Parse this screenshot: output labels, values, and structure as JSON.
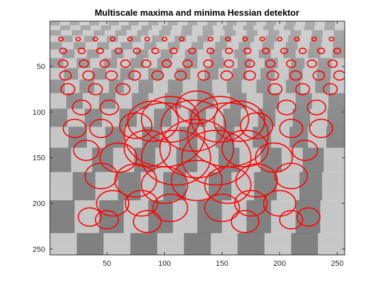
{
  "chart_data": {
    "type": "scatter",
    "title": "Multiscale maxima and minima Hessian detektor",
    "xlabel": "",
    "ylabel": "",
    "xlim": [
      0.5,
      256.5
    ],
    "ylim": [
      0.5,
      256.5
    ],
    "y_axis_reversed": true,
    "x_ticks": [
      50,
      100,
      150,
      200,
      250
    ],
    "y_ticks": [
      50,
      100,
      150,
      200,
      250
    ],
    "x_tick_labels": [
      "50",
      "100",
      "150",
      "200",
      "250"
    ],
    "y_tick_labels": [
      "50",
      "100",
      "150",
      "200",
      "250"
    ],
    "grid": false,
    "background": "grayscale checkerboard-like pattern in perspective, finer at the top",
    "marker": "circle outline",
    "marker_color": "#ff0000",
    "series": [
      {
        "points": [
          {
            "x": 10,
            "y": 20,
            "r": 2
          },
          {
            "x": 25,
            "y": 20,
            "r": 2
          },
          {
            "x": 40,
            "y": 20,
            "r": 2
          },
          {
            "x": 55,
            "y": 20,
            "r": 2
          },
          {
            "x": 70,
            "y": 20,
            "r": 2
          },
          {
            "x": 85,
            "y": 20,
            "r": 2
          },
          {
            "x": 100,
            "y": 20,
            "r": 2
          },
          {
            "x": 115,
            "y": 20,
            "r": 2
          },
          {
            "x": 140,
            "y": 20,
            "r": 2
          },
          {
            "x": 155,
            "y": 20,
            "r": 2
          },
          {
            "x": 170,
            "y": 20,
            "r": 2
          },
          {
            "x": 185,
            "y": 20,
            "r": 2
          },
          {
            "x": 200,
            "y": 20,
            "r": 2
          },
          {
            "x": 215,
            "y": 20,
            "r": 2
          },
          {
            "x": 230,
            "y": 20,
            "r": 2
          },
          {
            "x": 245,
            "y": 20,
            "r": 2
          },
          {
            "x": 12,
            "y": 33,
            "r": 3
          },
          {
            "x": 28,
            "y": 33,
            "r": 3
          },
          {
            "x": 44,
            "y": 33,
            "r": 3
          },
          {
            "x": 60,
            "y": 33,
            "r": 3
          },
          {
            "x": 76,
            "y": 33,
            "r": 3
          },
          {
            "x": 92,
            "y": 33,
            "r": 3
          },
          {
            "x": 108,
            "y": 33,
            "r": 3
          },
          {
            "x": 124,
            "y": 33,
            "r": 3
          },
          {
            "x": 140,
            "y": 33,
            "r": 3
          },
          {
            "x": 156,
            "y": 33,
            "r": 3
          },
          {
            "x": 172,
            "y": 33,
            "r": 3
          },
          {
            "x": 188,
            "y": 33,
            "r": 3
          },
          {
            "x": 204,
            "y": 33,
            "r": 3
          },
          {
            "x": 220,
            "y": 33,
            "r": 3
          },
          {
            "x": 236,
            "y": 33,
            "r": 3
          },
          {
            "x": 250,
            "y": 33,
            "r": 3
          },
          {
            "x": 12,
            "y": 47,
            "r": 4
          },
          {
            "x": 30,
            "y": 47,
            "r": 4
          },
          {
            "x": 48,
            "y": 47,
            "r": 4
          },
          {
            "x": 66,
            "y": 47,
            "r": 4
          },
          {
            "x": 84,
            "y": 47,
            "r": 4
          },
          {
            "x": 102,
            "y": 47,
            "r": 4
          },
          {
            "x": 120,
            "y": 47,
            "r": 4
          },
          {
            "x": 138,
            "y": 47,
            "r": 4
          },
          {
            "x": 156,
            "y": 47,
            "r": 4
          },
          {
            "x": 174,
            "y": 47,
            "r": 4
          },
          {
            "x": 192,
            "y": 47,
            "r": 4
          },
          {
            "x": 210,
            "y": 47,
            "r": 4
          },
          {
            "x": 228,
            "y": 47,
            "r": 4
          },
          {
            "x": 246,
            "y": 47,
            "r": 4
          },
          {
            "x": 14,
            "y": 60,
            "r": 5
          },
          {
            "x": 34,
            "y": 60,
            "r": 5
          },
          {
            "x": 54,
            "y": 60,
            "r": 5
          },
          {
            "x": 74,
            "y": 60,
            "r": 5
          },
          {
            "x": 94,
            "y": 60,
            "r": 5
          },
          {
            "x": 114,
            "y": 60,
            "r": 5
          },
          {
            "x": 134,
            "y": 60,
            "r": 5
          },
          {
            "x": 154,
            "y": 60,
            "r": 5
          },
          {
            "x": 174,
            "y": 60,
            "r": 5
          },
          {
            "x": 194,
            "y": 60,
            "r": 5
          },
          {
            "x": 214,
            "y": 60,
            "r": 5
          },
          {
            "x": 234,
            "y": 60,
            "r": 5
          },
          {
            "x": 252,
            "y": 60,
            "r": 5
          },
          {
            "x": 16,
            "y": 75,
            "r": 6
          },
          {
            "x": 40,
            "y": 75,
            "r": 6
          },
          {
            "x": 64,
            "y": 75,
            "r": 6
          },
          {
            "x": 196,
            "y": 75,
            "r": 6
          },
          {
            "x": 220,
            "y": 75,
            "r": 6
          },
          {
            "x": 244,
            "y": 75,
            "r": 6
          },
          {
            "x": 28,
            "y": 95,
            "r": 8
          },
          {
            "x": 52,
            "y": 95,
            "r": 8
          },
          {
            "x": 206,
            "y": 95,
            "r": 8
          },
          {
            "x": 232,
            "y": 95,
            "r": 8
          },
          {
            "x": 22,
            "y": 118,
            "r": 10
          },
          {
            "x": 45,
            "y": 118,
            "r": 10
          },
          {
            "x": 210,
            "y": 118,
            "r": 10
          },
          {
            "x": 236,
            "y": 118,
            "r": 10
          },
          {
            "x": 32,
            "y": 142,
            "r": 11
          },
          {
            "x": 222,
            "y": 142,
            "r": 11
          },
          {
            "x": 90,
            "y": 110,
            "r": 22
          },
          {
            "x": 105,
            "y": 108,
            "r": 25
          },
          {
            "x": 125,
            "y": 115,
            "r": 28
          },
          {
            "x": 148,
            "y": 108,
            "r": 25
          },
          {
            "x": 165,
            "y": 110,
            "r": 22
          },
          {
            "x": 128,
            "y": 140,
            "r": 32
          },
          {
            "x": 100,
            "y": 125,
            "r": 35
          },
          {
            "x": 155,
            "y": 125,
            "r": 35
          },
          {
            "x": 110,
            "y": 150,
            "r": 30
          },
          {
            "x": 145,
            "y": 150,
            "r": 30
          },
          {
            "x": 85,
            "y": 140,
            "r": 20
          },
          {
            "x": 170,
            "y": 140,
            "r": 20
          },
          {
            "x": 128,
            "y": 95,
            "r": 18
          },
          {
            "x": 75,
            "y": 115,
            "r": 14
          },
          {
            "x": 180,
            "y": 115,
            "r": 14
          },
          {
            "x": 60,
            "y": 150,
            "r": 16
          },
          {
            "x": 195,
            "y": 150,
            "r": 16
          },
          {
            "x": 45,
            "y": 170,
            "r": 14
          },
          {
            "x": 210,
            "y": 170,
            "r": 14
          },
          {
            "x": 75,
            "y": 175,
            "r": 18
          },
          {
            "x": 180,
            "y": 175,
            "r": 18
          },
          {
            "x": 100,
            "y": 180,
            "r": 20
          },
          {
            "x": 155,
            "y": 180,
            "r": 20
          },
          {
            "x": 128,
            "y": 175,
            "r": 22
          },
          {
            "x": 55,
            "y": 200,
            "r": 14
          },
          {
            "x": 80,
            "y": 200,
            "r": 14
          },
          {
            "x": 105,
            "y": 205,
            "r": 15
          },
          {
            "x": 150,
            "y": 205,
            "r": 15
          },
          {
            "x": 175,
            "y": 200,
            "r": 14
          },
          {
            "x": 200,
            "y": 200,
            "r": 14
          },
          {
            "x": 35,
            "y": 215,
            "r": 10
          },
          {
            "x": 50,
            "y": 218,
            "r": 10
          },
          {
            "x": 85,
            "y": 220,
            "r": 12
          },
          {
            "x": 170,
            "y": 220,
            "r": 12
          },
          {
            "x": 210,
            "y": 218,
            "r": 10
          },
          {
            "x": 225,
            "y": 215,
            "r": 10
          }
        ]
      }
    ]
  }
}
